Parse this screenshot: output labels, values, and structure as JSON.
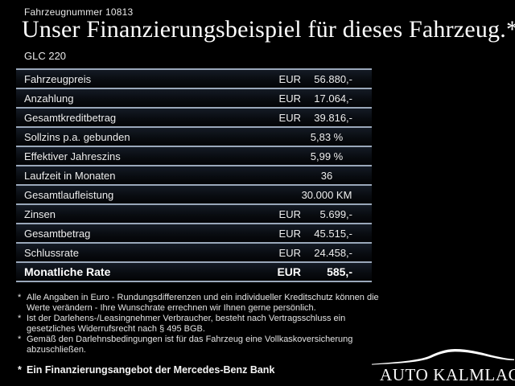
{
  "header": {
    "vehicle_number": "Fahrzeugnummer 10813",
    "title": "Unser Finanzierungsbeispiel für dieses Fahrzeug.*",
    "model": "GLC 220"
  },
  "finance_table": {
    "rows": [
      {
        "label": "Fahrzeugpreis",
        "currency": "EUR",
        "value": "56.880,-",
        "bold": false
      },
      {
        "label": "Anzahlung",
        "currency": "EUR",
        "value": "17.064,-",
        "bold": false
      },
      {
        "label": "Gesamtkreditbetrag",
        "currency": "EUR",
        "value": "39.816,-",
        "bold": false
      },
      {
        "label": "Sollzins p.a. gebunden",
        "currency": "",
        "value": "5,83 %",
        "bold": false
      },
      {
        "label": "Effektiver Jahreszins",
        "currency": "",
        "value": "5,99 %",
        "bold": false
      },
      {
        "label": "Laufzeit in Monaten",
        "currency": "",
        "value": "36",
        "bold": false
      },
      {
        "label": "Gesamtlaufleistung",
        "currency": "",
        "value": "30.000 KM",
        "bold": false
      },
      {
        "label": "Zinsen",
        "currency": "EUR",
        "value": "5.699,-",
        "bold": false
      },
      {
        "label": "Gesamtbetrag",
        "currency": "EUR",
        "value": "45.515,-",
        "bold": false
      },
      {
        "label": "Schlussrate",
        "currency": "EUR",
        "value": "24.458,-",
        "bold": false
      },
      {
        "label": "Monatliche Rate",
        "currency": "EUR",
        "value": "585,-",
        "bold": true
      }
    ]
  },
  "footnotes": [
    {
      "marker": "*",
      "text": "Alle Angaben in Euro - Rundungsdifferenzen und ein individueller Kreditschutz können die Werte verändern - Ihre Wunschrate errechnen wir Ihnen gerne persönlich."
    },
    {
      "marker": "*",
      "text": "Ist der Darlehens-/Leasingnehmer Verbraucher, besteht nach Vertragsschluss ein gesetzliches Widerrufsrecht nach § 495 BGB."
    },
    {
      "marker": "*",
      "text": "Gemäß den Darlehnsbedingungen ist für das Fahrzeug eine Vollkaskoversicherung abzuschließen."
    }
  ],
  "footer": {
    "bank_note_marker": "*",
    "bank_note": "Ein Finanzierungsangebot der Mercedes-Benz Bank",
    "dealer_name": "AUTO KALMLAGE",
    "dealer_icon": "car-silhouette-swoosh-icon"
  },
  "colors": {
    "background": "#000000",
    "table_line": "#9aa8ba",
    "row_gradient_top": "#151b25",
    "text": "#f2f2f2"
  }
}
